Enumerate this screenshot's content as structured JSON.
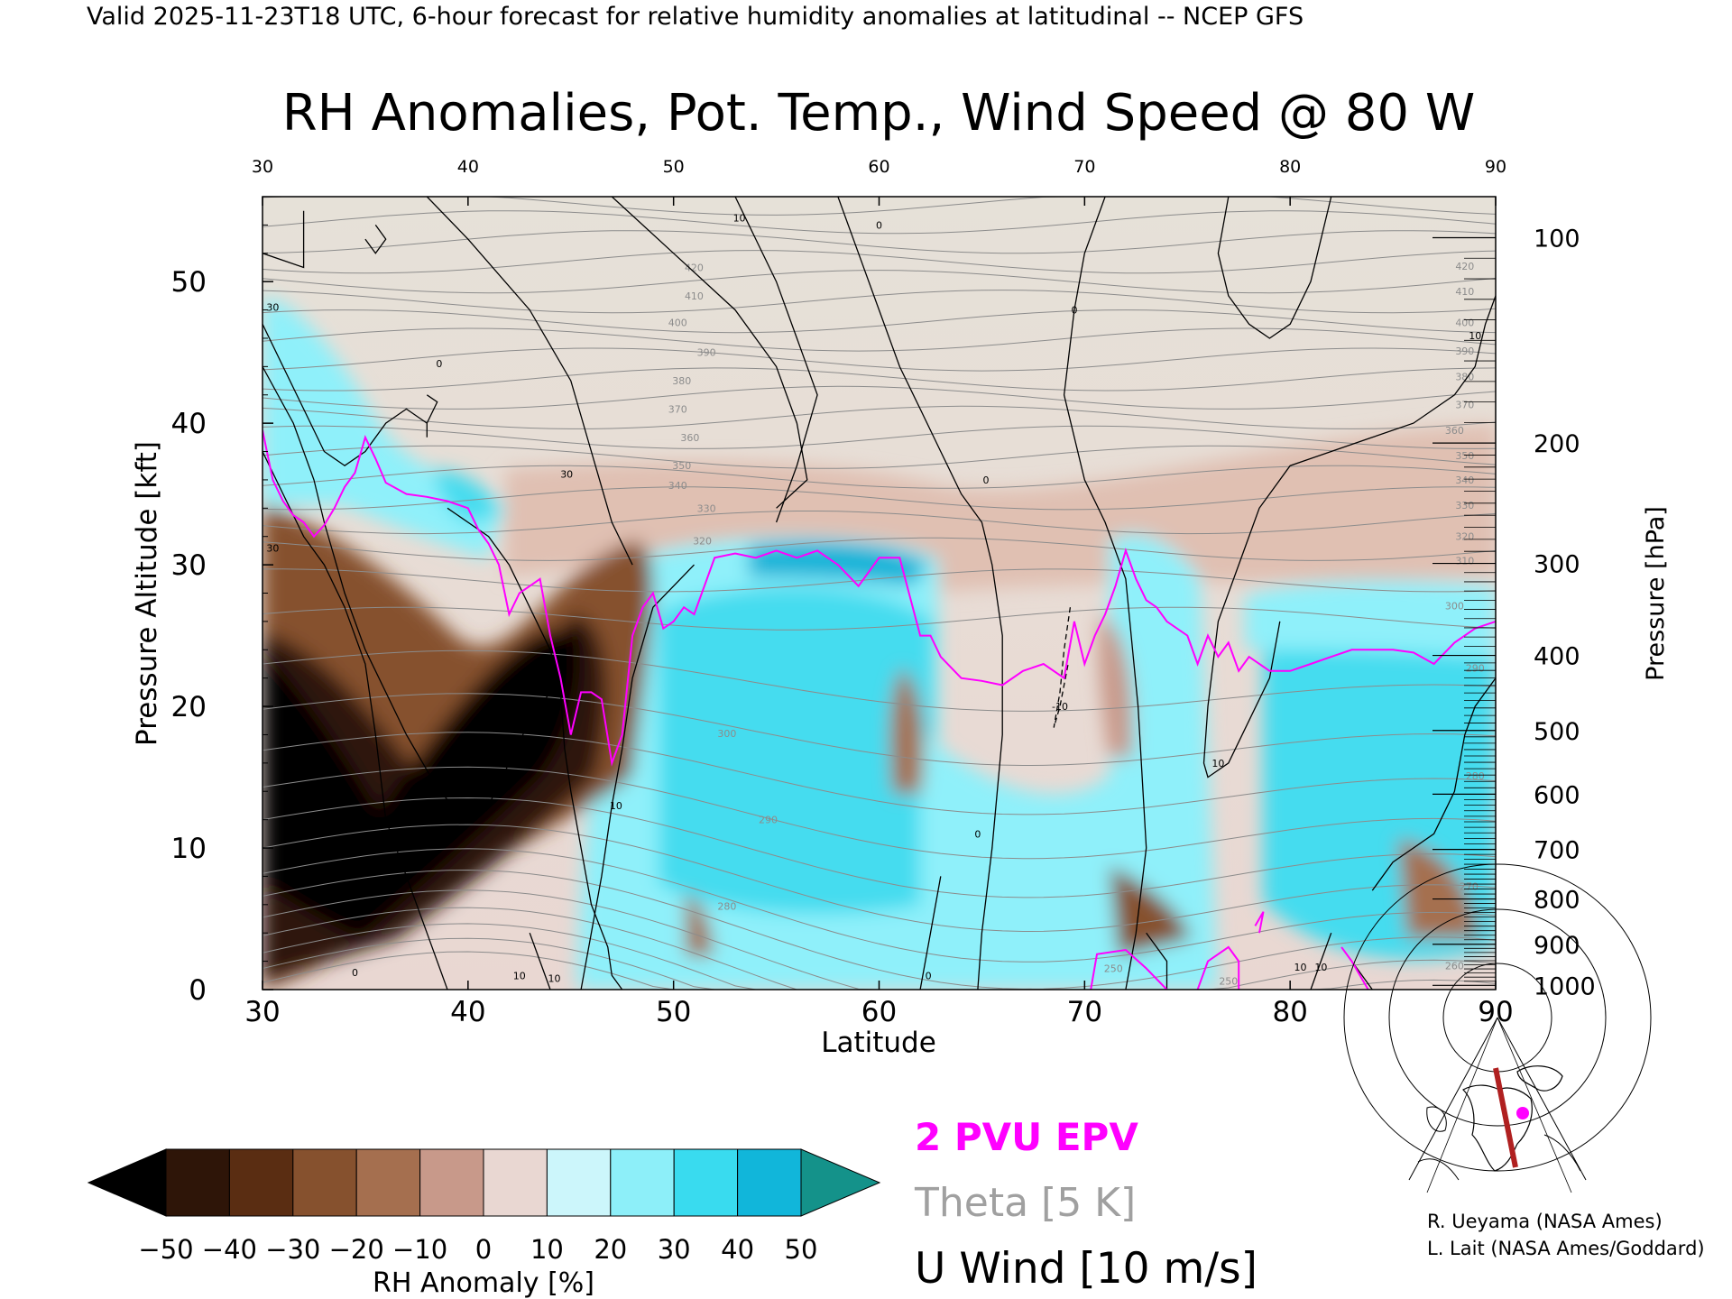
{
  "header": {
    "valid_line": "Valid 2025-11-23T18 UTC, 6-hour forecast for relative humidity anomalies at latitudinal -- NCEP GFS"
  },
  "chart_data": {
    "type": "heatmap",
    "title": "RH Anomalies, Pot. Temp., Wind Speed @ 80 W",
    "xlabel": "Latitude",
    "ylabel": "Pressure Altitude [kft]",
    "y2label": "Pressure [hPa]",
    "xlim": [
      30,
      90
    ],
    "ylim": [
      0,
      56
    ],
    "x_ticks": [
      "30",
      "40",
      "50",
      "60",
      "70",
      "80",
      "90"
    ],
    "x_ticks_top": [
      "30",
      "40",
      "50",
      "60",
      "70",
      "80",
      "90"
    ],
    "y_ticks": [
      "0",
      "10",
      "20",
      "30",
      "40",
      "50"
    ],
    "pressure_ticks": [
      {
        "label": "100",
        "alt_kft": 53.1
      },
      {
        "label": "200",
        "alt_kft": 38.6
      },
      {
        "label": "300",
        "alt_kft": 30.1
      },
      {
        "label": "400",
        "alt_kft": 23.6
      },
      {
        "label": "500",
        "alt_kft": 18.3
      },
      {
        "label": "600",
        "alt_kft": 13.8
      },
      {
        "label": "700",
        "alt_kft": 9.9
      },
      {
        "label": "800",
        "alt_kft": 6.4
      },
      {
        "label": "900",
        "alt_kft": 3.2
      },
      {
        "label": "1000",
        "alt_kft": 0.3
      }
    ],
    "theta_labels": [
      {
        "label": "420",
        "x": 51.0,
        "y": 51.0
      },
      {
        "label": "410",
        "x": 51.0,
        "y": 49.0
      },
      {
        "label": "400",
        "x": 50.2,
        "y": 47.1
      },
      {
        "label": "390",
        "x": 51.6,
        "y": 45.0
      },
      {
        "label": "380",
        "x": 50.4,
        "y": 43.0
      },
      {
        "label": "370",
        "x": 50.2,
        "y": 41.0
      },
      {
        "label": "360",
        "x": 50.8,
        "y": 39.0
      },
      {
        "label": "350",
        "x": 50.4,
        "y": 37.0
      },
      {
        "label": "340",
        "x": 50.2,
        "y": 35.6
      },
      {
        "label": "330",
        "x": 51.6,
        "y": 34.0
      },
      {
        "label": "320",
        "x": 51.4,
        "y": 31.7
      },
      {
        "label": "300",
        "x": 52.6,
        "y": 18.1
      },
      {
        "label": "290",
        "x": 54.6,
        "y": 12.0
      },
      {
        "label": "280",
        "x": 52.6,
        "y": 5.9
      },
      {
        "label": "270",
        "x": 88.7,
        "y": 7.3
      },
      {
        "label": "260",
        "x": 88.0,
        "y": 1.7
      },
      {
        "label": "250",
        "x": 71.4,
        "y": 1.5
      },
      {
        "label": "250",
        "x": 77.0,
        "y": 0.6
      },
      {
        "label": "420",
        "x": 88.5,
        "y": 51.1
      },
      {
        "label": "410",
        "x": 88.5,
        "y": 49.3
      },
      {
        "label": "400",
        "x": 88.5,
        "y": 47.1
      },
      {
        "label": "390",
        "x": 88.5,
        "y": 45.1
      },
      {
        "label": "380",
        "x": 88.5,
        "y": 43.3
      },
      {
        "label": "370",
        "x": 88.5,
        "y": 41.3
      },
      {
        "label": "360",
        "x": 88.0,
        "y": 39.5
      },
      {
        "label": "350",
        "x": 88.5,
        "y": 37.7
      },
      {
        "label": "340",
        "x": 88.5,
        "y": 36.0
      },
      {
        "label": "330",
        "x": 88.5,
        "y": 34.2
      },
      {
        "label": "320",
        "x": 88.5,
        "y": 32.0
      },
      {
        "label": "310",
        "x": 88.5,
        "y": 30.3
      },
      {
        "label": "300",
        "x": 88.0,
        "y": 27.1
      },
      {
        "label": "290",
        "x": 89.0,
        "y": 22.7
      },
      {
        "label": "280",
        "x": 89.0,
        "y": 15.1
      }
    ],
    "wind_labels": [
      {
        "label": "10",
        "x": 53.2,
        "y": 54.5
      },
      {
        "label": "0",
        "x": 60.0,
        "y": 54.0
      },
      {
        "label": "0",
        "x": 69.5,
        "y": 48.0
      },
      {
        "label": "10",
        "x": 89.0,
        "y": 46.2
      },
      {
        "label": "30",
        "x": 30.5,
        "y": 48.2
      },
      {
        "label": "30",
        "x": 44.8,
        "y": 36.4
      },
      {
        "label": "30",
        "x": 30.5,
        "y": 31.2
      },
      {
        "label": "0",
        "x": 65.2,
        "y": 36.0
      },
      {
        "label": "-10",
        "x": 68.8,
        "y": 20.0
      },
      {
        "label": "10",
        "x": 76.5,
        "y": 16.0
      },
      {
        "label": "10",
        "x": 47.2,
        "y": 13.0
      },
      {
        "label": "0",
        "x": 64.8,
        "y": 11.0
      },
      {
        "label": "0",
        "x": 34.5,
        "y": 1.2
      },
      {
        "label": "10",
        "x": 42.5,
        "y": 1.0
      },
      {
        "label": "10",
        "x": 44.2,
        "y": 0.8
      },
      {
        "label": "0",
        "x": 62.4,
        "y": 1.0
      },
      {
        "label": "10",
        "x": 80.5,
        "y": 1.6
      },
      {
        "label": "10",
        "x": 81.5,
        "y": 1.6
      },
      {
        "label": "0",
        "x": 38.6,
        "y": 44.2
      }
    ],
    "grid": false,
    "colorbar": {
      "label": "RH Anomaly [%]",
      "ticks": [
        "-50",
        "-40",
        "-30",
        "-20",
        "-10",
        "0",
        "10",
        "20",
        "30",
        "40",
        "50"
      ],
      "colors": [
        "#000000",
        "#2e1508",
        "#5a2d12",
        "#86512e",
        "#a56f4f",
        "#c8998a",
        "#e9d7d2",
        "#ccf6fb",
        "#8deff9",
        "#39dbef",
        "#11b6da",
        "#07819b",
        "#14928a"
      ]
    },
    "legend": [
      {
        "label": "2 PVU EPV",
        "color": "#ff00ff"
      },
      {
        "label": "Theta [5 K]",
        "color": "#a0a0a0"
      },
      {
        "label": "U Wind [10 m/s]",
        "color": "#000000"
      }
    ],
    "epv_2pvu_line": {
      "x": [
        30.0,
        30.5,
        31.0,
        31.5,
        32.0,
        32.5,
        33.0,
        33.5,
        34.0,
        34.5,
        35.0,
        35.5,
        36.0,
        37.0,
        38.0,
        39.0,
        40.0,
        40.5,
        41.0,
        41.5,
        42.0,
        42.5,
        43.0,
        43.5,
        44.0,
        44.5,
        45.0,
        45.5,
        46.0,
        46.5,
        47.0,
        47.5,
        48.0,
        48.5,
        49.0,
        49.5,
        50.0,
        50.5,
        51.0,
        52.0,
        53.0,
        54.0,
        55.0,
        56.0,
        57.0,
        58.0,
        59.0,
        60.0,
        61.0,
        62.0,
        62.5,
        63.0,
        64.0,
        65.0,
        66.0,
        67.0,
        68.0,
        69.0,
        69.5,
        70.0,
        70.5,
        71.0,
        71.5,
        72.0,
        72.5,
        73.0,
        73.5,
        74.0,
        75.0,
        75.5,
        76.0,
        76.5,
        77.0,
        77.5,
        78.0,
        79.0,
        80.0,
        81.0,
        82.0,
        83.0,
        84.0,
        85.0,
        86.0,
        87.0,
        88.0,
        89.0,
        90.0
      ],
      "y": [
        39.5,
        36.0,
        34.5,
        33.5,
        33.0,
        32.0,
        32.8,
        34.0,
        35.5,
        36.5,
        39.0,
        37.5,
        35.8,
        35.0,
        34.8,
        34.5,
        34.0,
        32.5,
        31.5,
        30.0,
        26.5,
        28.0,
        28.5,
        29.0,
        25.0,
        22.0,
        18.0,
        21.0,
        21.0,
        20.5,
        16.0,
        18.0,
        25.0,
        27.0,
        28.0,
        25.5,
        26.0,
        27.0,
        26.5,
        30.5,
        30.8,
        30.5,
        31.0,
        30.5,
        31.0,
        30.0,
        28.5,
        30.5,
        30.5,
        25.0,
        25.0,
        23.5,
        22.0,
        21.8,
        21.5,
        22.5,
        23.0,
        22.0,
        26.0,
        23.0,
        25.0,
        26.5,
        28.5,
        31.0,
        29.0,
        27.5,
        27.0,
        26.0,
        25.0,
        23.0,
        25.0,
        23.5,
        24.5,
        22.5,
        23.5,
        22.5,
        22.5,
        23.0,
        23.5,
        24.0,
        24.0,
        24.0,
        23.8,
        23.0,
        24.5,
        25.5,
        26.0
      ]
    }
  },
  "credits": {
    "line1": "R. Ueyama (NASA Ames)",
    "line2": "L. Lait (NASA Ames/Goddard)"
  }
}
